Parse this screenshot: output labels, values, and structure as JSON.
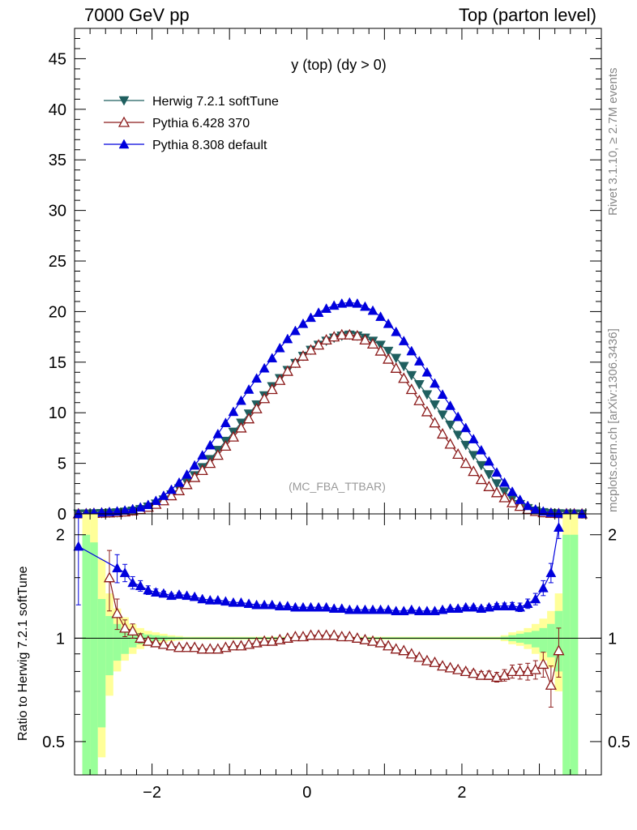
{
  "header": {
    "left": "7000 GeV pp",
    "right": "Top (parton level)"
  },
  "side": {
    "rivet": "Rivet 3.1.10, ≥ 2.7M events",
    "mcplots": "mcplots.cern.ch [arXiv:1306.3436]"
  },
  "chart_data": [
    {
      "type": "line",
      "panel": "main",
      "title": "y (top) (dy > 0)",
      "watermark": "(MC_FBA_TTBAR)",
      "ylim": [
        0,
        48
      ],
      "xlim": [
        -3.0,
        3.8
      ],
      "yticks": [
        0,
        5,
        10,
        15,
        20,
        25,
        30,
        35,
        40,
        45
      ],
      "legend_position": "top-left",
      "x": [
        -2.95,
        -2.85,
        -2.75,
        -2.65,
        -2.55,
        -2.45,
        -2.35,
        -2.25,
        -2.15,
        -2.05,
        -1.95,
        -1.85,
        -1.75,
        -1.65,
        -1.55,
        -1.45,
        -1.35,
        -1.25,
        -1.15,
        -1.05,
        -0.95,
        -0.85,
        -0.75,
        -0.65,
        -0.55,
        -0.45,
        -0.35,
        -0.25,
        -0.15,
        -0.05,
        0.05,
        0.15,
        0.25,
        0.35,
        0.45,
        0.55,
        0.65,
        0.75,
        0.85,
        0.95,
        1.05,
        1.15,
        1.25,
        1.35,
        1.45,
        1.55,
        1.65,
        1.75,
        1.85,
        1.95,
        2.05,
        2.15,
        2.25,
        2.35,
        2.45,
        2.55,
        2.65,
        2.75,
        2.85,
        2.95,
        3.05,
        3.15,
        3.25,
        3.35,
        3.45,
        3.55
      ],
      "series": [
        {
          "name": "Herwig 7.2.1 softTune",
          "color": "#1f5f5f",
          "marker": "triangle-down-filled",
          "values": [
            0.01,
            0.02,
            0.04,
            0.06,
            0.09,
            0.13,
            0.2,
            0.3,
            0.45,
            0.7,
            1.0,
            1.4,
            1.9,
            2.5,
            3.1,
            3.8,
            4.6,
            5.4,
            6.3,
            7.2,
            8.1,
            9.0,
            9.9,
            10.8,
            11.7,
            12.6,
            13.4,
            14.2,
            14.9,
            15.6,
            16.2,
            16.7,
            17.1,
            17.4,
            17.6,
            17.7,
            17.6,
            17.4,
            17.1,
            16.7,
            16.1,
            15.4,
            14.6,
            13.7,
            12.8,
            11.8,
            10.8,
            9.8,
            8.8,
            7.8,
            6.8,
            5.8,
            4.8,
            3.9,
            3.0,
            2.2,
            1.5,
            0.95,
            0.55,
            0.3,
            0.15,
            0.07,
            0.04,
            0.02,
            0.01,
            0.005
          ]
        },
        {
          "name": "Pythia 6.428 370",
          "color": "#8b1a1a",
          "marker": "triangle-up-open",
          "values": [
            0.01,
            0.02,
            0.05,
            0.08,
            0.1,
            0.14,
            0.2,
            0.3,
            0.43,
            0.66,
            0.95,
            1.3,
            1.8,
            2.3,
            2.9,
            3.6,
            4.3,
            5.0,
            5.8,
            6.7,
            7.6,
            8.5,
            9.4,
            10.4,
            11.4,
            12.3,
            13.2,
            14.1,
            14.9,
            15.6,
            16.2,
            16.7,
            17.2,
            17.5,
            17.7,
            17.7,
            17.6,
            17.2,
            16.8,
            16.1,
            15.3,
            14.4,
            13.4,
            12.3,
            11.2,
            10.1,
            9.0,
            7.9,
            6.9,
            5.9,
            5.0,
            4.2,
            3.4,
            2.7,
            2.1,
            1.6,
            1.1,
            0.75,
            0.45,
            0.25,
            0.12,
            0.06,
            0.03,
            0.02,
            0.01,
            0.005
          ]
        },
        {
          "name": "Pythia 8.308 default",
          "color": "#0000dd",
          "marker": "triangle-up-filled",
          "values": [
            0.02,
            0.05,
            0.1,
            0.15,
            0.2,
            0.26,
            0.35,
            0.48,
            0.65,
            0.9,
            1.3,
            1.8,
            2.4,
            3.1,
            3.9,
            4.8,
            5.8,
            6.8,
            7.9,
            9.0,
            10.1,
            11.2,
            12.3,
            13.4,
            14.4,
            15.4,
            16.4,
            17.3,
            18.1,
            18.8,
            19.4,
            19.9,
            20.3,
            20.6,
            20.8,
            20.9,
            20.8,
            20.5,
            20.1,
            19.5,
            18.8,
            18.0,
            17.1,
            16.1,
            15.1,
            14.0,
            12.9,
            11.8,
            10.7,
            9.6,
            8.5,
            7.4,
            6.3,
            5.2,
            4.1,
            3.1,
            2.2,
            1.4,
            0.8,
            0.45,
            0.25,
            0.12,
            0.06,
            0.03,
            0.01,
            0.005
          ]
        }
      ]
    },
    {
      "type": "line",
      "panel": "ratio",
      "ylabel": "Ratio to Herwig 7.2.1 softTune",
      "ylim": [
        0.4,
        2.3
      ],
      "log_y": true,
      "xlim": [
        -3.0,
        3.8
      ],
      "yticks": [
        "0.5",
        "1",
        "2"
      ],
      "xticks": [
        "−2",
        "0",
        "2"
      ],
      "bands": {
        "x_edges": [
          -2.9,
          -2.8,
          -2.7,
          -2.6,
          -2.5,
          -2.4,
          -2.3,
          -2.2,
          -2.1,
          -2.0,
          -1.9,
          -1.8,
          -1.7,
          -1.6,
          -1.5,
          2.5,
          2.6,
          2.7,
          2.8,
          2.9,
          3.0,
          3.1,
          3.2,
          3.3,
          3.4,
          3.5
        ],
        "yellow_hi": [
          2.6,
          2.4,
          1.7,
          1.35,
          1.22,
          1.15,
          1.1,
          1.07,
          1.05,
          1.04,
          1.03,
          1.02,
          1.015,
          1.01,
          1.01,
          1.02,
          1.04,
          1.05,
          1.07,
          1.1,
          1.14,
          1.2,
          1.35,
          2.4,
          2.6
        ],
        "yellow_lo": [
          0.35,
          0.35,
          0.45,
          0.68,
          0.8,
          0.86,
          0.9,
          0.93,
          0.95,
          0.96,
          0.97,
          0.98,
          0.985,
          0.99,
          0.99,
          0.98,
          0.96,
          0.95,
          0.93,
          0.9,
          0.86,
          0.82,
          0.7,
          0.35,
          0.35
        ],
        "green_hi": [
          2.0,
          1.9,
          1.3,
          1.16,
          1.1,
          1.07,
          1.05,
          1.035,
          1.025,
          1.02,
          1.015,
          1.01,
          1.008,
          1.006,
          1.006,
          1.01,
          1.02,
          1.03,
          1.04,
          1.05,
          1.07,
          1.1,
          1.2,
          2.0,
          2.0
        ],
        "green_lo": [
          0.35,
          0.35,
          0.55,
          0.78,
          0.86,
          0.9,
          0.94,
          0.96,
          0.97,
          0.98,
          0.985,
          0.99,
          0.992,
          0.994,
          0.994,
          0.99,
          0.98,
          0.97,
          0.96,
          0.94,
          0.91,
          0.88,
          0.8,
          0.35,
          0.35
        ]
      },
      "series": [
        {
          "name": "Pythia 6.428 370",
          "color": "#8b1a1a",
          "marker": "triangle-up-open",
          "x": [
            -2.55,
            -2.45,
            -2.35,
            -2.25,
            -2.15,
            -2.05,
            -1.95,
            -1.85,
            -1.75,
            -1.65,
            -1.55,
            -1.45,
            -1.35,
            -1.25,
            -1.15,
            -1.05,
            -0.95,
            -0.85,
            -0.75,
            -0.65,
            -0.55,
            -0.45,
            -0.35,
            -0.25,
            -0.15,
            -0.05,
            0.05,
            0.15,
            0.25,
            0.35,
            0.45,
            0.55,
            0.65,
            0.75,
            0.85,
            0.95,
            1.05,
            1.15,
            1.25,
            1.35,
            1.45,
            1.55,
            1.65,
            1.75,
            1.85,
            1.95,
            2.05,
            2.15,
            2.25,
            2.35,
            2.45,
            2.55,
            2.65,
            2.75,
            2.85,
            2.95,
            3.05,
            3.15,
            3.25
          ],
          "values": [
            1.5,
            1.18,
            1.07,
            1.05,
            1.0,
            0.98,
            0.97,
            0.96,
            0.95,
            0.94,
            0.94,
            0.94,
            0.93,
            0.93,
            0.93,
            0.94,
            0.95,
            0.95,
            0.96,
            0.97,
            0.98,
            0.98,
            0.99,
            1.0,
            1.01,
            1.01,
            1.02,
            1.02,
            1.02,
            1.02,
            1.01,
            1.01,
            1.0,
            0.99,
            0.98,
            0.97,
            0.95,
            0.93,
            0.92,
            0.9,
            0.88,
            0.86,
            0.85,
            0.83,
            0.82,
            0.81,
            0.8,
            0.79,
            0.78,
            0.78,
            0.77,
            0.78,
            0.8,
            0.8,
            0.8,
            0.81,
            0.84,
            0.73,
            0.92
          ],
          "errors": [
            0.3,
            0.12,
            0.06,
            0.05,
            0.03,
            0.02,
            0.015,
            0.01,
            0.01,
            0.01,
            0.01,
            0.008,
            0.008,
            0.007,
            0.007,
            0.007,
            0.006,
            0.006,
            0.006,
            0.005,
            0.005,
            0.005,
            0.005,
            0.005,
            0.005,
            0.005,
            0.005,
            0.005,
            0.005,
            0.005,
            0.005,
            0.005,
            0.005,
            0.005,
            0.005,
            0.006,
            0.006,
            0.006,
            0.007,
            0.007,
            0.008,
            0.008,
            0.009,
            0.01,
            0.01,
            0.012,
            0.014,
            0.016,
            0.02,
            0.022,
            0.025,
            0.03,
            0.035,
            0.04,
            0.045,
            0.05,
            0.07,
            0.1,
            0.15
          ]
        },
        {
          "name": "Pythia 8.308 default",
          "color": "#0000dd",
          "marker": "triangle-up-filled",
          "x": [
            -2.95,
            -2.45,
            -2.35,
            -2.25,
            -2.15,
            -2.05,
            -1.95,
            -1.85,
            -1.75,
            -1.65,
            -1.55,
            -1.45,
            -1.35,
            -1.25,
            -1.15,
            -1.05,
            -0.95,
            -0.85,
            -0.75,
            -0.65,
            -0.55,
            -0.45,
            -0.35,
            -0.25,
            -0.15,
            -0.05,
            0.05,
            0.15,
            0.25,
            0.35,
            0.45,
            0.55,
            0.65,
            0.75,
            0.85,
            0.95,
            1.05,
            1.15,
            1.25,
            1.35,
            1.45,
            1.55,
            1.65,
            1.75,
            1.85,
            1.95,
            2.05,
            2.15,
            2.25,
            2.35,
            2.45,
            2.55,
            2.65,
            2.75,
            2.85,
            2.95,
            3.05,
            3.15,
            3.25
          ],
          "values": [
            1.85,
            1.6,
            1.55,
            1.45,
            1.42,
            1.38,
            1.36,
            1.35,
            1.33,
            1.34,
            1.33,
            1.32,
            1.3,
            1.29,
            1.29,
            1.28,
            1.27,
            1.27,
            1.26,
            1.25,
            1.25,
            1.25,
            1.24,
            1.24,
            1.23,
            1.23,
            1.23,
            1.23,
            1.23,
            1.22,
            1.22,
            1.21,
            1.21,
            1.21,
            1.21,
            1.21,
            1.21,
            1.2,
            1.2,
            1.21,
            1.2,
            1.2,
            1.2,
            1.21,
            1.22,
            1.22,
            1.23,
            1.23,
            1.22,
            1.23,
            1.24,
            1.24,
            1.24,
            1.23,
            1.26,
            1.3,
            1.4,
            1.55,
            2.1
          ],
          "errors": [
            0.6,
            0.15,
            0.09,
            0.06,
            0.05,
            0.04,
            0.03,
            0.02,
            0.02,
            0.015,
            0.012,
            0.01,
            0.01,
            0.008,
            0.008,
            0.007,
            0.007,
            0.006,
            0.006,
            0.006,
            0.005,
            0.005,
            0.005,
            0.005,
            0.005,
            0.005,
            0.005,
            0.005,
            0.005,
            0.005,
            0.005,
            0.005,
            0.005,
            0.005,
            0.005,
            0.005,
            0.006,
            0.006,
            0.006,
            0.007,
            0.007,
            0.008,
            0.008,
            0.009,
            0.01,
            0.011,
            0.012,
            0.014,
            0.016,
            0.018,
            0.02,
            0.025,
            0.03,
            0.035,
            0.04,
            0.05,
            0.07,
            0.1,
            0.15
          ]
        }
      ]
    }
  ]
}
